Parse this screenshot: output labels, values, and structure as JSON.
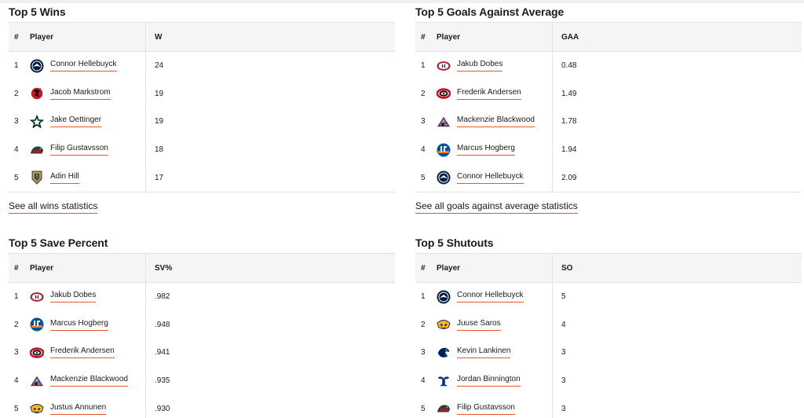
{
  "colors": {
    "accent_underline": "#e8572d",
    "header_bg": "#f5f5f5",
    "border": "#e2e2e2"
  },
  "wins": {
    "title": "Top 5 Wins",
    "headers": {
      "rank": "#",
      "player": "Player",
      "stat": "W"
    },
    "rows": [
      {
        "rank": "1",
        "player": "Connor Hellebuyck",
        "value": "24",
        "team_icon": "winnipeg-jets-logo-icon"
      },
      {
        "rank": "2",
        "player": "Jacob Markstrom",
        "value": "19",
        "team_icon": "new-jersey-devils-logo-icon"
      },
      {
        "rank": "3",
        "player": "Jake Oettinger",
        "value": "19",
        "team_icon": "dallas-stars-logo-icon"
      },
      {
        "rank": "4",
        "player": "Filip Gustavsson",
        "value": "18",
        "team_icon": "minnesota-wild-logo-icon"
      },
      {
        "rank": "5",
        "player": "Adin Hill",
        "value": "17",
        "team_icon": "vegas-golden-knights-logo-icon"
      }
    ],
    "see_all": "See all wins statistics"
  },
  "gaa": {
    "title": "Top 5 Goals Against Average",
    "headers": {
      "rank": "#",
      "player": "Player",
      "stat": "GAA"
    },
    "rows": [
      {
        "rank": "1",
        "player": "Jakub Dobes",
        "value": "0.48",
        "team_icon": "montreal-canadiens-logo-icon"
      },
      {
        "rank": "2",
        "player": "Frederik Andersen",
        "value": "1.49",
        "team_icon": "carolina-hurricanes-logo-icon"
      },
      {
        "rank": "3",
        "player": "Mackenzie Blackwood",
        "value": "1.78",
        "team_icon": "colorado-avalanche-logo-icon"
      },
      {
        "rank": "4",
        "player": "Marcus Hogberg",
        "value": "1.94",
        "team_icon": "new-york-islanders-logo-icon"
      },
      {
        "rank": "5",
        "player": "Connor Hellebuyck",
        "value": "2.09",
        "team_icon": "winnipeg-jets-logo-icon"
      }
    ],
    "see_all": "See all goals against average statistics"
  },
  "save": {
    "title": "Top 5 Save Percent",
    "headers": {
      "rank": "#",
      "player": "Player",
      "stat": "SV%"
    },
    "rows": [
      {
        "rank": "1",
        "player": "Jakub Dobes",
        "value": ".982",
        "team_icon": "montreal-canadiens-logo-icon"
      },
      {
        "rank": "2",
        "player": "Marcus Hogberg",
        "value": ".948",
        "team_icon": "new-york-islanders-logo-icon"
      },
      {
        "rank": "3",
        "player": "Frederik Andersen",
        "value": ".941",
        "team_icon": "carolina-hurricanes-logo-icon"
      },
      {
        "rank": "4",
        "player": "Mackenzie Blackwood",
        "value": ".935",
        "team_icon": "colorado-avalanche-logo-icon"
      },
      {
        "rank": "5",
        "player": "Justus Annunen",
        "value": ".930",
        "team_icon": "nashville-predators-logo-icon"
      }
    ]
  },
  "shutouts": {
    "title": "Top 5 Shutouts",
    "headers": {
      "rank": "#",
      "player": "Player",
      "stat": "SO"
    },
    "rows": [
      {
        "rank": "1",
        "player": "Connor Hellebuyck",
        "value": "5",
        "team_icon": "winnipeg-jets-logo-icon"
      },
      {
        "rank": "2",
        "player": "Juuse Saros",
        "value": "4",
        "team_icon": "nashville-predators-logo-icon"
      },
      {
        "rank": "3",
        "player": "Kevin Lankinen",
        "value": "3",
        "team_icon": "vancouver-canucks-logo-icon"
      },
      {
        "rank": "4",
        "player": "Jordan Binnington",
        "value": "3",
        "team_icon": "st-louis-blues-logo-icon"
      },
      {
        "rank": "5",
        "player": "Filip Gustavsson",
        "value": "3",
        "team_icon": "minnesota-wild-logo-icon"
      }
    ]
  }
}
